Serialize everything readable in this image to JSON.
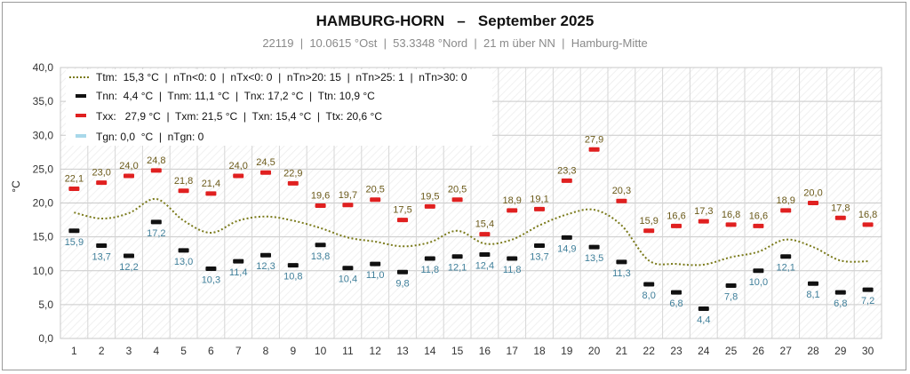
{
  "header": {
    "title": "HAMBURG-HORN   –   September 2025",
    "subtitle": "22119  |  10.0615 °Ost  |  53.3348 °Nord  |  21 m über NN  |  Hamburg-Mitte"
  },
  "legend": {
    "ttm": "Ttm:  15,3 °C  |  nTn<0: 0  |  nTx<0: 0  |  nTn>20: 15  |  nTn>25: 1  |  nTn>30: 0",
    "tn": "Tnn:  4,4 °C  |  Tnm: 11,1 °C  |  Tnx: 17,2 °C  |  Ttn: 10,9 °C",
    "tx": "Txx:   27,9 °C  |  Txm: 21,5 °C  |  Txn: 15,4 °C  |  Ttx: 20,6 °C",
    "tg": "Tgn: 0,0  °C  |  nTgn: 0"
  },
  "colors": {
    "max_marker": "#e02020",
    "min_marker": "#111111",
    "mean_line": "#7a7a1a",
    "max_label": "#6b5a1a",
    "min_label": "#3f7f9a",
    "ground": "#a8d8ea"
  },
  "chart_data": {
    "type": "line",
    "ylabel": "°C",
    "ylim": [
      0,
      40
    ],
    "yticks": [
      "0,0",
      "5,0",
      "10,0",
      "15,0",
      "20,0",
      "25,0",
      "30,0",
      "35,0",
      "40,0"
    ],
    "categories": [
      "1",
      "2",
      "3",
      "4",
      "5",
      "6",
      "7",
      "8",
      "9",
      "10",
      "11",
      "12",
      "13",
      "14",
      "15",
      "16",
      "17",
      "18",
      "19",
      "20",
      "21",
      "22",
      "23",
      "24",
      "25",
      "26",
      "27",
      "28",
      "29",
      "30"
    ],
    "grid": true,
    "series": [
      {
        "name": "Txx",
        "kind": "max",
        "values": [
          22.1,
          23.0,
          24.0,
          24.8,
          21.8,
          21.4,
          24.0,
          24.5,
          22.9,
          19.6,
          19.7,
          20.5,
          17.5,
          19.5,
          20.5,
          15.4,
          18.9,
          19.1,
          23.3,
          27.9,
          20.3,
          15.9,
          16.6,
          17.3,
          16.8,
          16.6,
          18.9,
          20.0,
          17.8,
          16.8
        ],
        "labels": [
          "22,1",
          "23,0",
          "24,0",
          "24,8",
          "21,8",
          "21,4",
          "24,0",
          "24,5",
          "22,9",
          "19,6",
          "19,7",
          "20,5",
          "17,5",
          "19,5",
          "20,5",
          "15,4",
          "18,9",
          "19,1",
          "23,3",
          "27,9",
          "20,3",
          "15,9",
          "16,6",
          "17,3",
          "16,8",
          "16,6",
          "18,9",
          "20,0",
          "17,8",
          "16,8"
        ]
      },
      {
        "name": "Tnn",
        "kind": "min",
        "values": [
          15.9,
          13.7,
          12.2,
          17.2,
          13.0,
          10.3,
          11.4,
          12.3,
          10.8,
          13.8,
          10.4,
          11.0,
          9.8,
          11.8,
          12.1,
          12.4,
          11.8,
          13.7,
          14.9,
          13.5,
          11.3,
          8.0,
          6.8,
          4.4,
          7.8,
          10.0,
          12.1,
          8.1,
          6.8,
          7.2
        ],
        "labels": [
          "15,9",
          "13,7",
          "12,2",
          "17,2",
          "13,0",
          "10,3",
          "11,4",
          "12,3",
          "10,8",
          "13,8",
          "10,4",
          "11,0",
          "9,8",
          "11,8",
          "12,1",
          "12,4",
          "11,8",
          "13,7",
          "14,9",
          "13,5",
          "11,3",
          "8,0",
          "6,8",
          "4,4",
          "7,8",
          "10,0",
          "12,1",
          "8,1",
          "6,8",
          "7,2"
        ]
      },
      {
        "name": "Ttm",
        "kind": "mean",
        "values": [
          18.6,
          17.7,
          18.5,
          20.6,
          17.4,
          15.6,
          17.4,
          18.0,
          17.4,
          16.3,
          14.9,
          14.3,
          13.6,
          14.2,
          15.9,
          14.0,
          14.6,
          16.7,
          18.3,
          19.0,
          16.7,
          11.5,
          11.0,
          10.9,
          12.0,
          12.8,
          14.6,
          13.5,
          11.5,
          11.4
        ]
      }
    ]
  }
}
